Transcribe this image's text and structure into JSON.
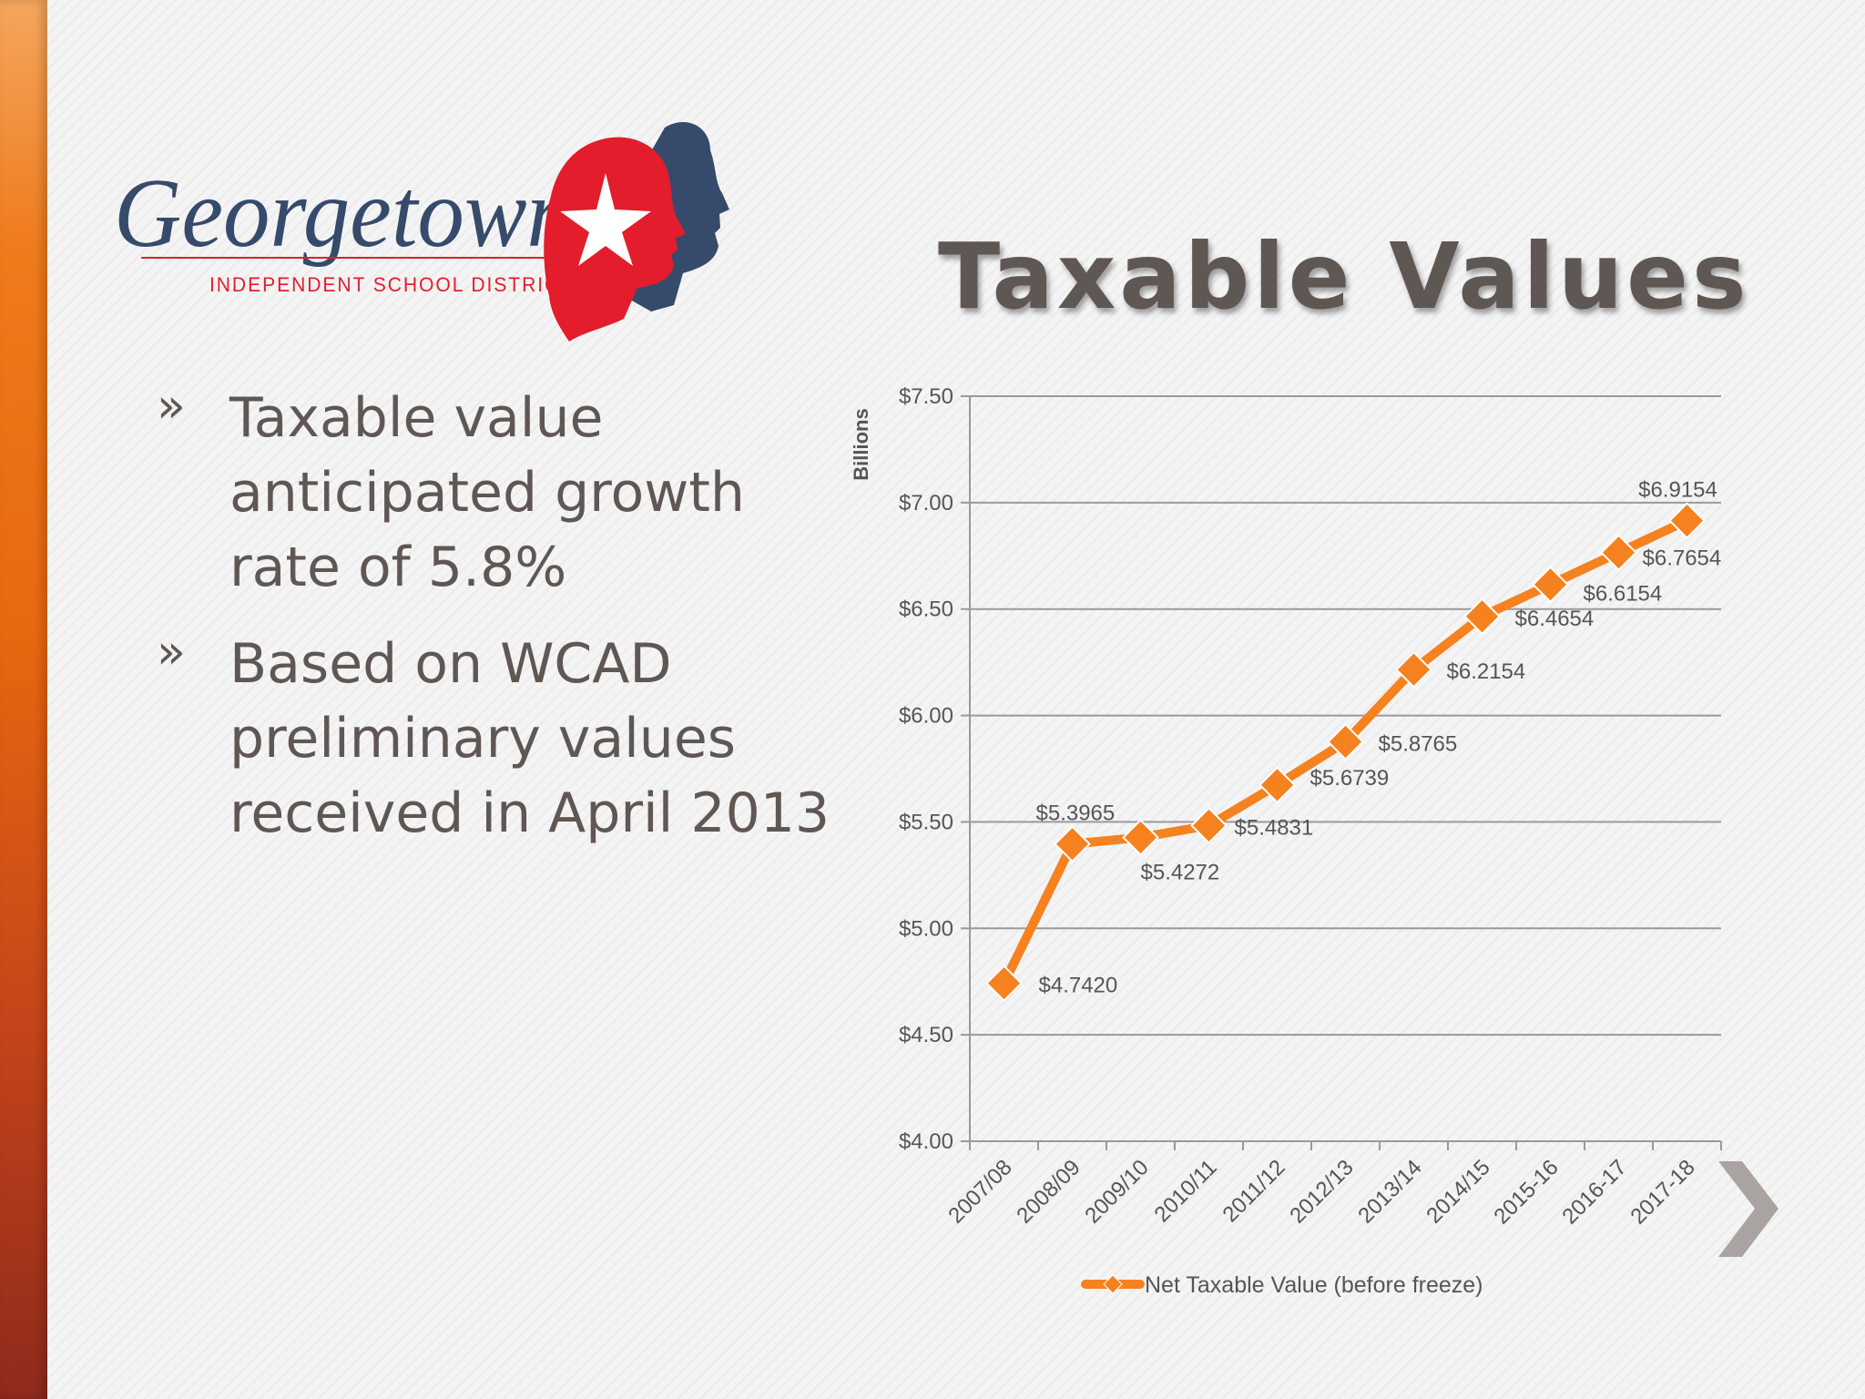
{
  "logo": {
    "name": "Georgetown",
    "subtitle": "INDEPENDENT SCHOOL DISTRICT"
  },
  "title": "Taxable Values",
  "bullets": [
    {
      "marker": "»",
      "text": "Taxable value anticipated growth rate of 5.8%"
    },
    {
      "marker": "»",
      "text": "Based on WCAD preliminary values received in April 2013"
    }
  ],
  "colors": {
    "accent": "#F5821F",
    "text": "#5F5753",
    "logo_red": "#E31D2B",
    "logo_navy": "#364A6B"
  },
  "icons": {
    "next": "chevron-right-icon"
  },
  "chart_data": {
    "type": "line",
    "title": "",
    "xlabel": "",
    "ylabel": "Billions",
    "ylim": [
      4.0,
      7.5
    ],
    "yticks": [
      4.0,
      4.5,
      5.0,
      5.5,
      6.0,
      6.5,
      7.0,
      7.5
    ],
    "ytick_labels": [
      "$4.00",
      "$4.50",
      "$5.00",
      "$5.50",
      "$6.00",
      "$6.50",
      "$7.00",
      "$7.50"
    ],
    "grid": true,
    "legend_position": "bottom",
    "categories": [
      "2007/08",
      "2008/09",
      "2009/10",
      "2010/11",
      "2011/12",
      "2012/13",
      "2013/14",
      "2014/15",
      "2015-16",
      "2016-17",
      "2017-18"
    ],
    "series": [
      {
        "name": "Net Taxable Value (before freeze)",
        "color": "#F5821F",
        "marker": "diamond",
        "values": [
          4.742,
          5.3965,
          5.4272,
          5.4831,
          5.6739,
          5.8765,
          6.2154,
          6.4654,
          6.6154,
          6.7654,
          6.9154
        ],
        "data_labels": [
          "$4.7420",
          "$5.3965",
          "$5.4272",
          "$5.4831",
          "$5.6739",
          "$5.8765",
          "$6.2154",
          "$6.4654",
          "$6.6154",
          "$6.7654",
          "$6.9154"
        ]
      }
    ]
  }
}
